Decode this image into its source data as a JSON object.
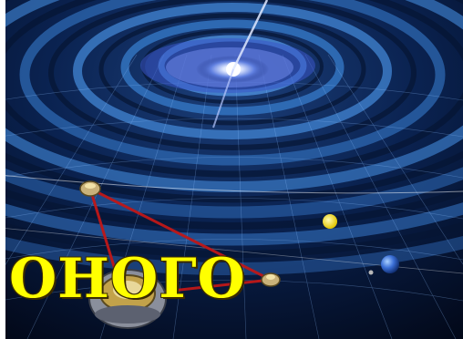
{
  "image": {
    "description_icon": "gravitational-wave-spacetime",
    "overlay_text": "ОНОГО",
    "colors": {
      "space": "#02081c",
      "wave_grid": "#2f6fb8",
      "laser_arms": "#c01818",
      "text": "#ffff00",
      "core_glow": "#eef4ff",
      "sun": "#f4e21a",
      "earth": "#3b6fd6"
    }
  }
}
